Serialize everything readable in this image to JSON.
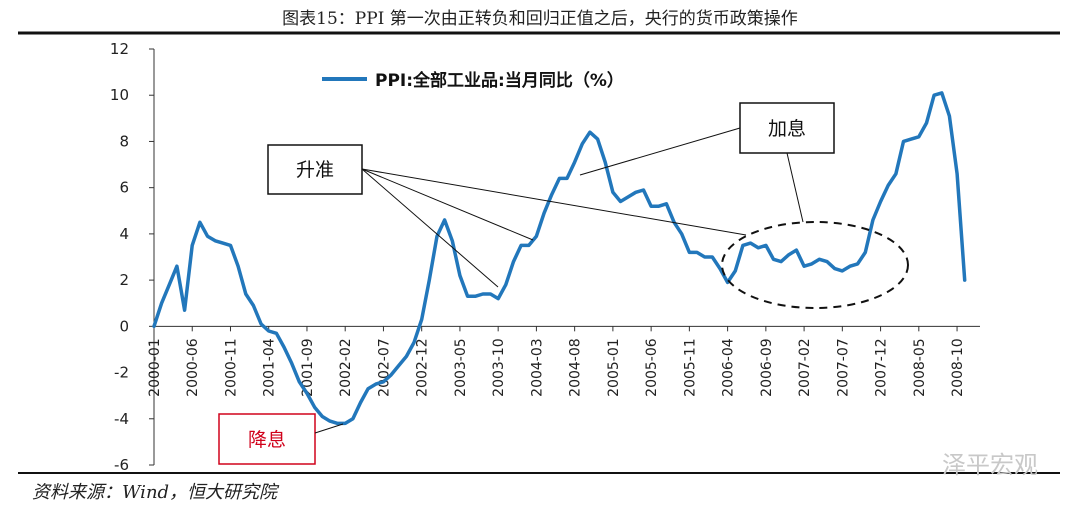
{
  "figure": {
    "title": "图表15：PPI 第一次由正转负和回归正值之后，央行的货币政策操作",
    "source": "资料来源：Wind，恒大研究院",
    "watermark": "泽平宏观"
  },
  "annotations": {
    "rrr_hike": "升准",
    "rate_hike": "加息",
    "rate_cut": "降息"
  },
  "colors": {
    "line": "#2277bb",
    "cut_box": "#d0021b"
  },
  "chart_data": {
    "type": "line",
    "title": "",
    "legend": [
      "PPI:全部工业品:当月同比（%）"
    ],
    "legend_position": "top",
    "xlabel": "",
    "ylabel": "",
    "ylim": [
      -6,
      12
    ],
    "yticks": [
      -6,
      -4,
      -2,
      0,
      2,
      4,
      6,
      8,
      10,
      12
    ],
    "xtick_labels": [
      "2000-01",
      "2000-06",
      "2000-11",
      "2001-04",
      "2001-09",
      "2002-02",
      "2002-07",
      "2002-12",
      "2003-05",
      "2003-10",
      "2004-03",
      "2004-08",
      "2005-01",
      "2005-06",
      "2005-11",
      "2006-04",
      "2006-09",
      "2007-02",
      "2007-07",
      "2007-12",
      "2008-05",
      "2008-10"
    ],
    "xlim": [
      "2000-01",
      "2008-12"
    ],
    "series": [
      {
        "name": "PPI:全部工业品:当月同比（%）",
        "points": [
          [
            "2000-01",
            0.0
          ],
          [
            "2000-02",
            1.0
          ],
          [
            "2000-03",
            1.8
          ],
          [
            "2000-04",
            2.6
          ],
          [
            "2000-05",
            0.7
          ],
          [
            "2000-06",
            3.5
          ],
          [
            "2000-07",
            4.5
          ],
          [
            "2000-08",
            3.9
          ],
          [
            "2000-09",
            3.7
          ],
          [
            "2000-10",
            3.6
          ],
          [
            "2000-11",
            3.5
          ],
          [
            "2000-12",
            2.6
          ],
          [
            "2001-01",
            1.4
          ],
          [
            "2001-02",
            0.9
          ],
          [
            "2001-03",
            0.1
          ],
          [
            "2001-04",
            -0.2
          ],
          [
            "2001-05",
            -0.3
          ],
          [
            "2001-06",
            -0.9
          ],
          [
            "2001-07",
            -1.6
          ],
          [
            "2001-08",
            -2.4
          ],
          [
            "2001-09",
            -2.9
          ],
          [
            "2001-10",
            -3.5
          ],
          [
            "2001-11",
            -3.9
          ],
          [
            "2001-12",
            -4.1
          ],
          [
            "2002-01",
            -4.2
          ],
          [
            "2002-02",
            -4.2
          ],
          [
            "2002-03",
            -4.0
          ],
          [
            "2002-04",
            -3.3
          ],
          [
            "2002-05",
            -2.7
          ],
          [
            "2002-06",
            -2.5
          ],
          [
            "2002-07",
            -2.4
          ],
          [
            "2002-08",
            -2.1
          ],
          [
            "2002-09",
            -1.7
          ],
          [
            "2002-10",
            -1.3
          ],
          [
            "2002-11",
            -0.7
          ],
          [
            "2002-12",
            0.3
          ],
          [
            "2003-01",
            2.0
          ],
          [
            "2003-02",
            3.9
          ],
          [
            "2003-03",
            4.6
          ],
          [
            "2003-04",
            3.7
          ],
          [
            "2003-05",
            2.2
          ],
          [
            "2003-06",
            1.3
          ],
          [
            "2003-07",
            1.3
          ],
          [
            "2003-08",
            1.4
          ],
          [
            "2003-09",
            1.4
          ],
          [
            "2003-10",
            1.2
          ],
          [
            "2003-11",
            1.8
          ],
          [
            "2003-12",
            2.8
          ],
          [
            "2004-01",
            3.5
          ],
          [
            "2004-02",
            3.5
          ],
          [
            "2004-03",
            3.9
          ],
          [
            "2004-04",
            4.9
          ],
          [
            "2004-05",
            5.7
          ],
          [
            "2004-06",
            6.4
          ],
          [
            "2004-07",
            6.4
          ],
          [
            "2004-08",
            7.1
          ],
          [
            "2004-09",
            7.9
          ],
          [
            "2004-10",
            8.4
          ],
          [
            "2004-11",
            8.1
          ],
          [
            "2004-12",
            7.1
          ],
          [
            "2005-01",
            5.8
          ],
          [
            "2005-02",
            5.4
          ],
          [
            "2005-03",
            5.6
          ],
          [
            "2005-04",
            5.8
          ],
          [
            "2005-05",
            5.9
          ],
          [
            "2005-06",
            5.2
          ],
          [
            "2005-07",
            5.2
          ],
          [
            "2005-08",
            5.3
          ],
          [
            "2005-09",
            4.5
          ],
          [
            "2005-10",
            4.0
          ],
          [
            "2005-11",
            3.2
          ],
          [
            "2005-12",
            3.2
          ],
          [
            "2006-01",
            3.0
          ],
          [
            "2006-02",
            3.0
          ],
          [
            "2006-03",
            2.5
          ],
          [
            "2006-04",
            1.9
          ],
          [
            "2006-05",
            2.4
          ],
          [
            "2006-06",
            3.5
          ],
          [
            "2006-07",
            3.6
          ],
          [
            "2006-08",
            3.4
          ],
          [
            "2006-09",
            3.5
          ],
          [
            "2006-10",
            2.9
          ],
          [
            "2006-11",
            2.8
          ],
          [
            "2006-12",
            3.1
          ],
          [
            "2007-01",
            3.3
          ],
          [
            "2007-02",
            2.6
          ],
          [
            "2007-03",
            2.7
          ],
          [
            "2007-04",
            2.9
          ],
          [
            "2007-05",
            2.8
          ],
          [
            "2007-06",
            2.5
          ],
          [
            "2007-07",
            2.4
          ],
          [
            "2007-08",
            2.6
          ],
          [
            "2007-09",
            2.7
          ],
          [
            "2007-10",
            3.2
          ],
          [
            "2007-11",
            4.6
          ],
          [
            "2007-12",
            5.4
          ],
          [
            "2008-01",
            6.1
          ],
          [
            "2008-02",
            6.6
          ],
          [
            "2008-03",
            8.0
          ],
          [
            "2008-04",
            8.1
          ],
          [
            "2008-05",
            8.2
          ],
          [
            "2008-06",
            8.8
          ],
          [
            "2008-07",
            10.0
          ],
          [
            "2008-08",
            10.1
          ],
          [
            "2008-09",
            9.1
          ],
          [
            "2008-10",
            6.6
          ],
          [
            "2008-11",
            2.0
          ]
        ]
      }
    ]
  }
}
